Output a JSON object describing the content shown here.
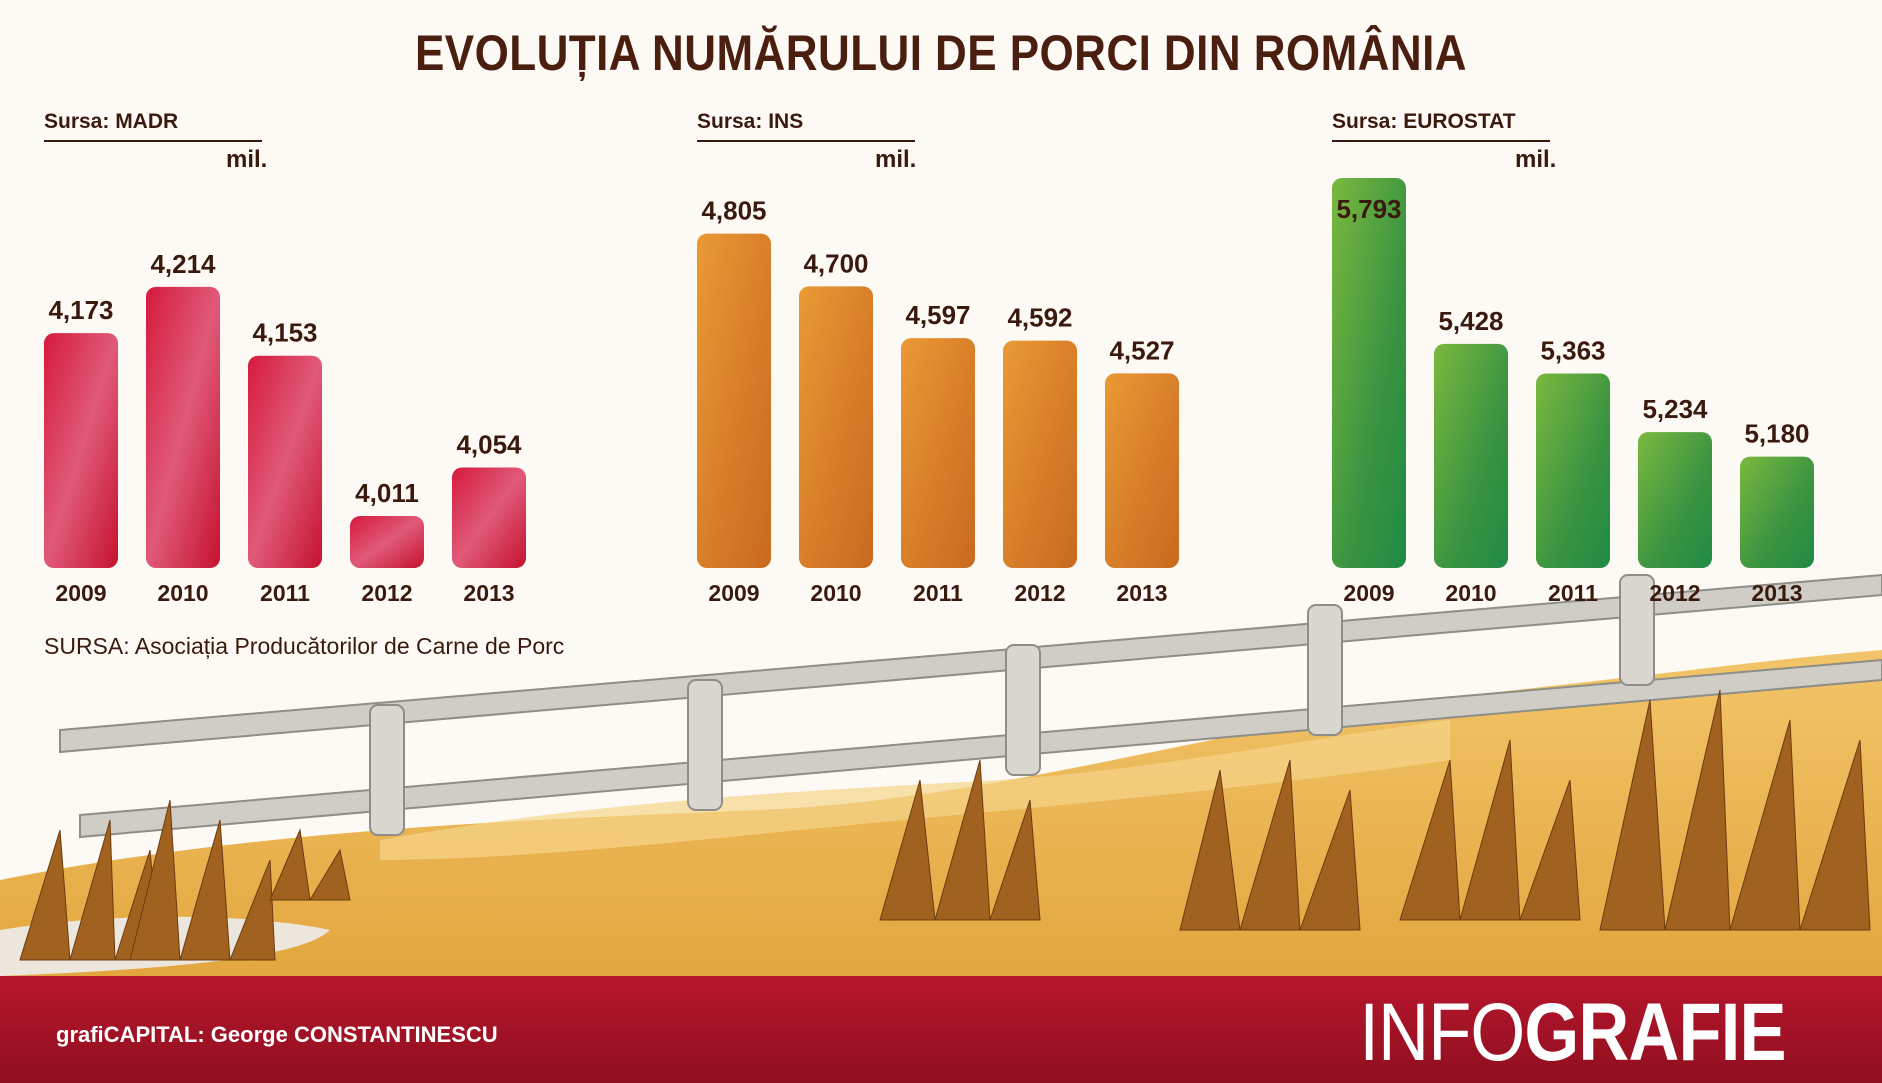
{
  "title": "EVOLUȚIA NUMĂRULUI DE PORCI DIN ROMÂNIA",
  "source_note": "SURSA: Asociația Producătorilor de Carne de Porc",
  "footer": {
    "credit": "grafiCAPITAL: George CONSTANTINESCU",
    "logo_light": "INFO",
    "logo_bold": "GRAFIE"
  },
  "chart_data": [
    {
      "type": "bar",
      "source_label": "Sursa: MADR",
      "unit": "mil.",
      "color": "#d0183a",
      "categories": [
        "2009",
        "2010",
        "2011",
        "2012",
        "2013"
      ],
      "values": [
        4.173,
        4.214,
        4.153,
        4.011,
        4.054
      ],
      "value_labels": [
        "4,173",
        "4,214",
        "4,153",
        "4,011",
        "4,054"
      ]
    },
    {
      "type": "bar",
      "source_label": "Sursa: INS",
      "unit": "mil.",
      "color": "#e08a2a",
      "categories": [
        "2009",
        "2010",
        "2011",
        "2012",
        "2013"
      ],
      "values": [
        4.805,
        4.7,
        4.597,
        4.592,
        4.527
      ],
      "value_labels": [
        "4,805",
        "4,700",
        "4,597",
        "4,592",
        "4,527"
      ]
    },
    {
      "type": "bar",
      "source_label": "Sursa: EUROSTAT",
      "unit": "mil.",
      "color": "#5aa23a",
      "categories": [
        "2009",
        "2010",
        "2011",
        "2012",
        "2013"
      ],
      "values": [
        5.793,
        5.428,
        5.363,
        5.234,
        5.18
      ],
      "value_labels": [
        "5,793",
        "5,428",
        "5,363",
        "5,234",
        "5,180"
      ]
    }
  ]
}
